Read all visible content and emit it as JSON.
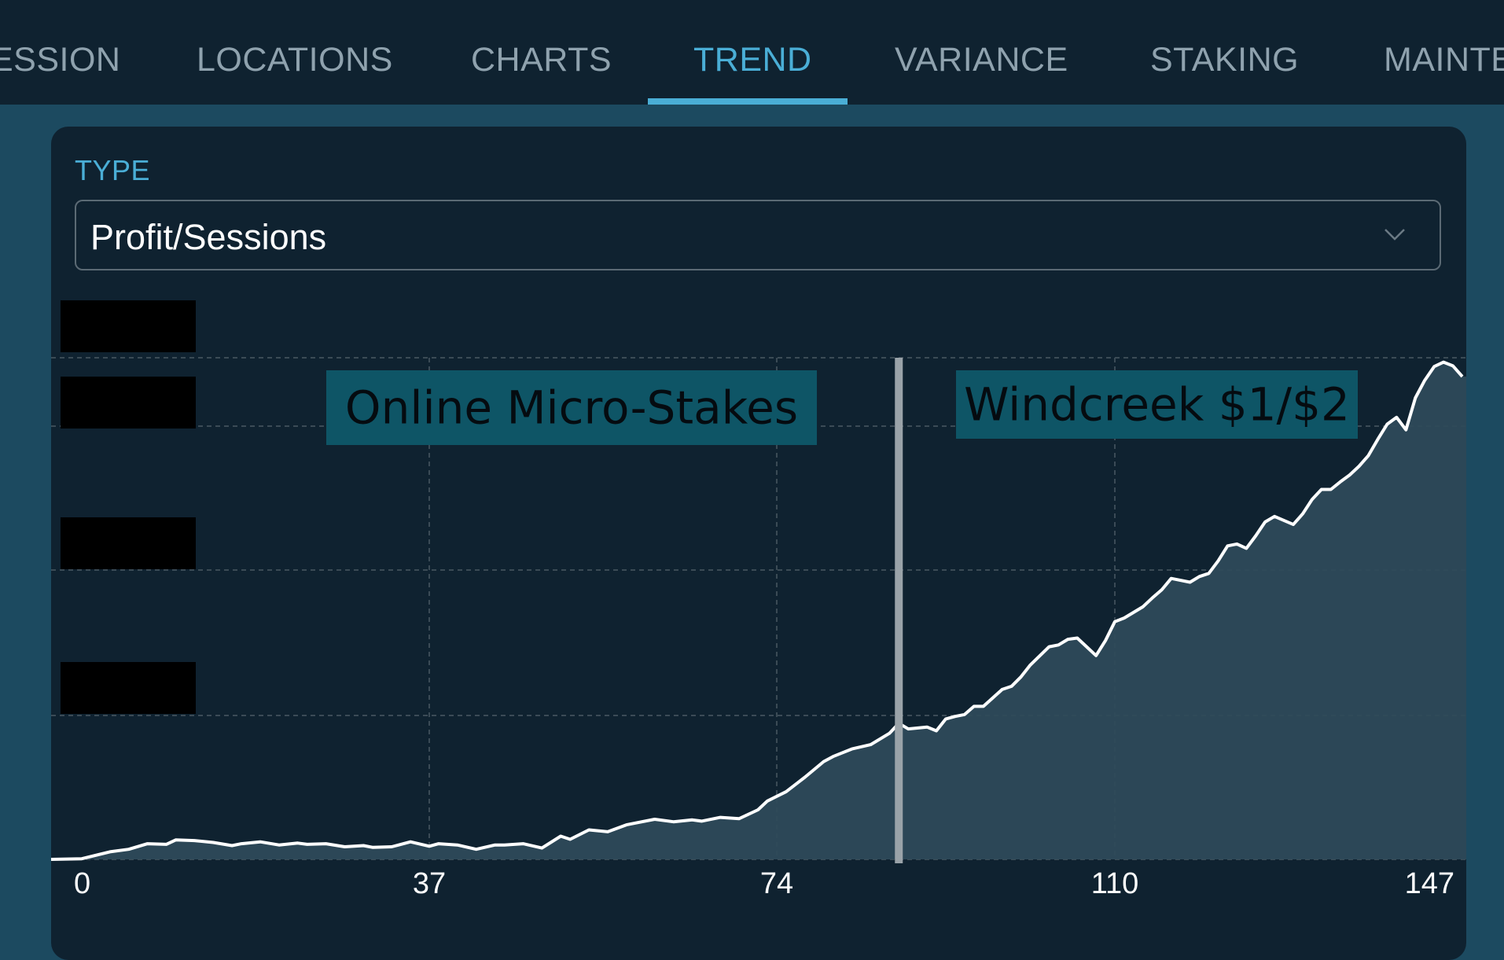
{
  "tabs": [
    {
      "label": "ESSION"
    },
    {
      "label": "LOCATIONS"
    },
    {
      "label": "CHARTS"
    },
    {
      "label": "TREND",
      "active": true
    },
    {
      "label": "VARIANCE"
    },
    {
      "label": "STAKING"
    },
    {
      "label": "MAINTE"
    }
  ],
  "filter": {
    "label": "TYPE",
    "selected": "Profit/Sessions"
  },
  "colors": {
    "accent": "#4aaed6",
    "background": "#0f2230",
    "line": "#ffffff",
    "area": "#2e4a5a",
    "annotation_box": "#0e5566"
  },
  "icons": {
    "dropdown": "chevron-down-icon"
  },
  "chart_data": {
    "type": "area",
    "x_ticks": [
      0,
      37,
      74,
      110,
      147
    ],
    "xlim": [
      0,
      147
    ],
    "grid": true,
    "y_tick_labels_redacted": true,
    "annotations": [
      {
        "text": "Online Micro-Stakes"
      },
      {
        "text": "Windcreek $1/$2"
      }
    ],
    "divider_x": 87,
    "x": [
      0,
      3,
      5,
      7,
      9,
      10,
      12,
      14,
      16,
      17,
      19,
      21,
      23,
      24,
      26,
      28,
      30,
      31,
      33,
      35,
      37,
      38,
      40,
      42,
      44,
      45,
      47,
      49,
      51,
      52,
      54,
      56,
      58,
      59,
      61,
      63,
      65,
      66,
      68,
      70,
      72,
      73,
      75,
      77,
      79,
      80,
      82,
      84,
      86,
      87,
      88,
      90,
      91,
      92,
      93,
      94,
      95,
      96,
      98,
      99,
      100,
      101,
      103,
      104,
      105,
      106,
      108,
      109,
      110,
      111,
      113,
      114,
      115,
      116,
      118,
      119,
      120,
      121,
      122,
      123,
      124,
      125,
      126,
      127,
      129,
      130,
      131,
      132,
      133,
      134,
      135,
      136,
      137,
      138,
      139,
      140,
      141,
      142,
      143,
      144,
      145,
      146,
      147
    ],
    "y": [
      0.1,
      1.2,
      1.6,
      2.5,
      2.4,
      3.1,
      3.0,
      2.7,
      2.2,
      2.5,
      2.8,
      2.3,
      2.6,
      2.4,
      2.5,
      2.0,
      2.2,
      1.9,
      2.0,
      2.8,
      2.1,
      2.5,
      2.3,
      1.6,
      2.3,
      2.3,
      2.5,
      1.8,
      3.7,
      3.2,
      4.7,
      4.4,
      5.5,
      5.8,
      6.4,
      6.0,
      6.3,
      6.1,
      6.7,
      6.5,
      7.9,
      9.3,
      10.8,
      13.1,
      15.6,
      16.4,
      17.6,
      18.3,
      20.1,
      21.7,
      20.8,
      21.1,
      20.5,
      22.4,
      22.8,
      23.1,
      24.4,
      24.4,
      27.1,
      27.6,
      29.1,
      31.0,
      33.9,
      34.2,
      35.1,
      35.3,
      32.5,
      34.9,
      37.9,
      38.5,
      40.3,
      41.7,
      43.0,
      44.8,
      44.2,
      45.1,
      45.6,
      47.6,
      50.0,
      50.3,
      49.6,
      51.6,
      53.8,
      54.7,
      53.4,
      55.1,
      57.4,
      59.0,
      59.0,
      60.2,
      61.3,
      62.7,
      64.4,
      67.0,
      69.4,
      70.5,
      68.5,
      73.6,
      76.4,
      78.6,
      79.3,
      78.7,
      77.0
    ]
  }
}
